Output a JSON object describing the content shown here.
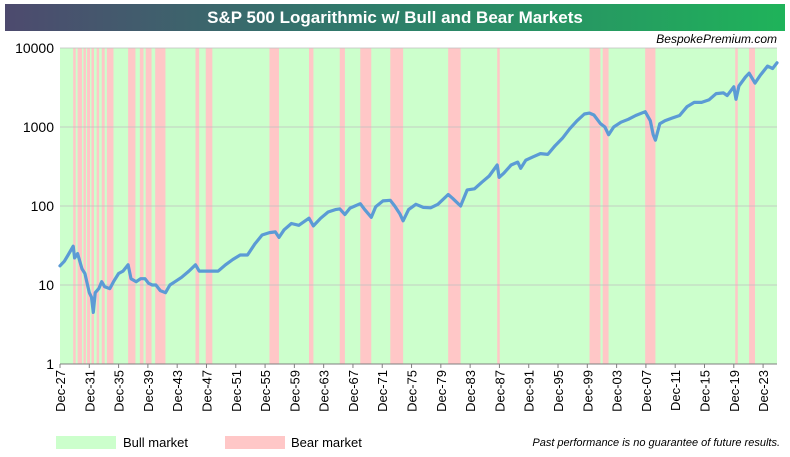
{
  "chart_data": {
    "type": "line",
    "title": "S&P 500 Logarithmic w/ Bull and Bear Markets",
    "source": "BespokePremium.com",
    "yscale": "log",
    "ylim": [
      1,
      10000
    ],
    "yticks": [
      1,
      10,
      100,
      1000,
      10000
    ],
    "yticklabels": [
      "1",
      "10",
      "100",
      "1000",
      "10000"
    ],
    "xlim": [
      1927.9,
      2025.8
    ],
    "xticks": [
      1927.9,
      1931.9,
      1935.9,
      1939.9,
      1943.9,
      1947.9,
      1951.9,
      1955.9,
      1959.9,
      1963.9,
      1967.9,
      1971.9,
      1975.9,
      1979.9,
      1983.9,
      1987.9,
      1991.9,
      1995.9,
      1999.9,
      2003.9,
      2007.9,
      2011.9,
      2015.9,
      2019.9,
      2023.9
    ],
    "xticklabels": [
      "Dec-27",
      "Dec-31",
      "Dec-35",
      "Dec-39",
      "Dec-43",
      "Dec-47",
      "Dec-51",
      "Dec-55",
      "Dec-59",
      "Dec-63",
      "Dec-67",
      "Dec-71",
      "Dec-75",
      "Dec-79",
      "Dec-83",
      "Dec-87",
      "Dec-91",
      "Dec-95",
      "Dec-99",
      "Dec-03",
      "Dec-07",
      "Dec-11",
      "Dec-15",
      "Dec-19",
      "Dec-23"
    ],
    "series": [
      {
        "name": "S&P 500",
        "x": [
          1927.9,
          1928.5,
          1929.0,
          1929.7,
          1929.9,
          1930.3,
          1930.9,
          1931.3,
          1931.9,
          1932.2,
          1932.45,
          1932.7,
          1933.2,
          1933.6,
          1934.0,
          1934.7,
          1935.2,
          1935.9,
          1936.5,
          1937.2,
          1937.6,
          1938.3,
          1938.9,
          1939.5,
          1940.0,
          1940.5,
          1941.0,
          1941.6,
          1942.3,
          1942.9,
          1943.6,
          1944.5,
          1945.5,
          1946.4,
          1946.9,
          1947.5,
          1948.5,
          1949.5,
          1950.5,
          1951.5,
          1952.5,
          1953.5,
          1954.5,
          1955.5,
          1956.5,
          1957.3,
          1957.8,
          1958.5,
          1959.5,
          1960.5,
          1961.9,
          1962.5,
          1963.5,
          1964.5,
          1965.5,
          1966.1,
          1966.8,
          1967.5,
          1968.9,
          1969.5,
          1970.4,
          1971.0,
          1972.0,
          1973.0,
          1973.6,
          1974.3,
          1974.75,
          1975.5,
          1976.5,
          1977.5,
          1978.5,
          1979.5,
          1980.9,
          1981.5,
          1982.6,
          1983.5,
          1984.5,
          1985.5,
          1986.5,
          1987.6,
          1987.85,
          1988.5,
          1989.5,
          1990.4,
          1990.8,
          1991.5,
          1992.5,
          1993.5,
          1994.5,
          1995.5,
          1996.5,
          1997.5,
          1998.5,
          1999.5,
          2000.2,
          2000.8,
          2001.7,
          2002.3,
          2002.8,
          2003.5,
          2004.5,
          2005.5,
          2006.5,
          2007.8,
          2008.5,
          2008.9,
          2009.2,
          2009.8,
          2010.5,
          2011.5,
          2012.5,
          2013.5,
          2014.5,
          2015.5,
          2016.5,
          2017.5,
          2018.5,
          2019.0,
          2019.9,
          2020.2,
          2020.6,
          2021.5,
          2021.99,
          2022.8,
          2023.5,
          2024.5,
          2025.2,
          2025.8
        ],
        "y": [
          17.5,
          20,
          24,
          31,
          22,
          25,
          16,
          14,
          8,
          7,
          4.5,
          8,
          9,
          11,
          9.5,
          9,
          11,
          14,
          15,
          18,
          12,
          11,
          12,
          12,
          10.5,
          10,
          10,
          8.5,
          8,
          10,
          11,
          12.5,
          15,
          18,
          15,
          15,
          15,
          15,
          18,
          21,
          24,
          24,
          33,
          43,
          46,
          47,
          40,
          50,
          60,
          57,
          70,
          56,
          70,
          84,
          90,
          92,
          78,
          94,
          107,
          90,
          72,
          98,
          116,
          118,
          100,
          80,
          65,
          90,
          105,
          96,
          95,
          105,
          140,
          125,
          100,
          160,
          165,
          200,
          240,
          330,
          230,
          260,
          330,
          360,
          300,
          380,
          420,
          460,
          450,
          580,
          720,
          950,
          1200,
          1460,
          1500,
          1420,
          1100,
          1000,
          800,
          1000,
          1150,
          1250,
          1400,
          1560,
          1200,
          800,
          680,
          1100,
          1200,
          1300,
          1400,
          1800,
          2050,
          2050,
          2200,
          2650,
          2700,
          2500,
          3230,
          2240,
          3300,
          4300,
          4800,
          3600,
          4500,
          5900,
          5500,
          6500
        ]
      }
    ],
    "bear_periods": [
      [
        1929.7,
        1929.9
      ],
      [
        1930.3,
        1930.9
      ],
      [
        1931.1,
        1931.4
      ],
      [
        1931.6,
        1932.0
      ],
      [
        1932.2,
        1932.5
      ],
      [
        1932.9,
        1933.2
      ],
      [
        1933.6,
        1934.0
      ],
      [
        1934.3,
        1935.2
      ],
      [
        1937.2,
        1938.2
      ],
      [
        1938.8,
        1939.3
      ],
      [
        1939.6,
        1940.4
      ],
      [
        1940.9,
        1942.3
      ],
      [
        1946.4,
        1946.9
      ],
      [
        1947.8,
        1948.7
      ],
      [
        1956.5,
        1957.8
      ],
      [
        1961.9,
        1962.5
      ],
      [
        1966.1,
        1966.8
      ],
      [
        1968.9,
        1970.4
      ],
      [
        1973.0,
        1974.75
      ],
      [
        1980.9,
        1982.6
      ],
      [
        1987.6,
        1987.85
      ],
      [
        2000.2,
        2001.7
      ],
      [
        2002.0,
        2002.8
      ],
      [
        2007.8,
        2009.2
      ],
      [
        2020.1,
        2020.2
      ],
      [
        2021.99,
        2022.8
      ]
    ],
    "legend": {
      "bull_label": "Bull market",
      "bear_label": "Bear market"
    },
    "colors": {
      "bull": "#ccffcc",
      "bear": "#ffc7c7",
      "line": "#5b9bd5",
      "grid": "#bfbfbf"
    },
    "disclaimer": "Past performance is no guarantee of future results."
  }
}
